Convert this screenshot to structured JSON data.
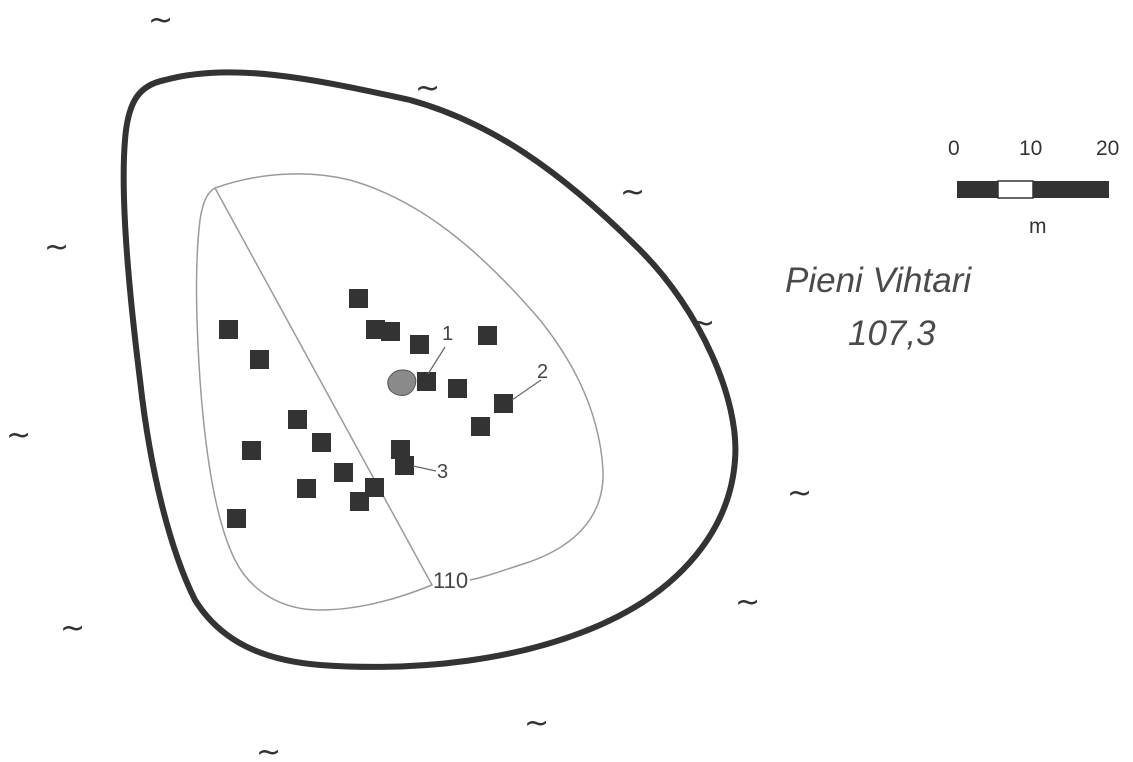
{
  "map": {
    "lake_name": "Pieni Vihtari",
    "lake_elevation": "107,3",
    "contour_label": "110",
    "feature_labels": [
      "1",
      "2",
      "3"
    ],
    "water_symbol": "~",
    "colors": {
      "outline": "#333333",
      "contour": "#9a9a9a",
      "pit": "#333333",
      "stone": "#8a8a8a",
      "text": "#444444"
    }
  },
  "scale_bar": {
    "ticks": [
      "0",
      "10",
      "20"
    ],
    "unit": "m"
  }
}
